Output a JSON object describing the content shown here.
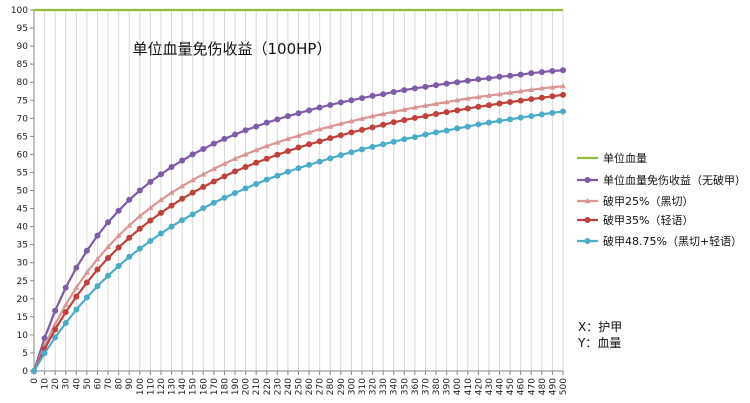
{
  "chart_data": {
    "type": "line",
    "title": "单位血量免伤收益（100HP）",
    "xlabel": "",
    "ylabel": "",
    "xlim": [
      0,
      500
    ],
    "ylim": [
      0,
      100
    ],
    "x_step": 10,
    "y_step": 5,
    "grid": "vertical",
    "legend_position": "right",
    "x": [
      0,
      10,
      20,
      30,
      40,
      50,
      60,
      70,
      80,
      90,
      100,
      110,
      120,
      130,
      140,
      150,
      160,
      170,
      180,
      190,
      200,
      210,
      220,
      230,
      240,
      250,
      260,
      270,
      280,
      290,
      300,
      310,
      320,
      330,
      340,
      350,
      360,
      370,
      380,
      390,
      400,
      410,
      420,
      430,
      440,
      450,
      460,
      470,
      480,
      490,
      500
    ],
    "series": [
      {
        "name": "单位血量",
        "color": "#8fbc3f",
        "marker": "none",
        "values": [
          100,
          100,
          100,
          100,
          100,
          100,
          100,
          100,
          100,
          100,
          100,
          100,
          100,
          100,
          100,
          100,
          100,
          100,
          100,
          100,
          100,
          100,
          100,
          100,
          100,
          100,
          100,
          100,
          100,
          100,
          100,
          100,
          100,
          100,
          100,
          100,
          100,
          100,
          100,
          100,
          100,
          100,
          100,
          100,
          100,
          100,
          100,
          100,
          100,
          100,
          100
        ]
      },
      {
        "name": "单位血量免伤收益（无破甲）",
        "color": "#7e5ba6",
        "marker": "circle",
        "values": [
          0,
          9.1,
          16.7,
          23.1,
          28.6,
          33.3,
          37.5,
          41.2,
          44.4,
          47.4,
          50.0,
          52.4,
          54.5,
          56.5,
          58.3,
          60.0,
          61.5,
          63.0,
          64.3,
          65.5,
          66.7,
          67.7,
          68.8,
          69.7,
          70.6,
          71.4,
          72.2,
          73.0,
          73.7,
          74.4,
          75.0,
          75.6,
          76.2,
          76.7,
          77.3,
          77.8,
          78.3,
          78.7,
          79.2,
          79.6,
          80.0,
          80.4,
          80.8,
          81.1,
          81.5,
          81.8,
          82.1,
          82.5,
          82.8,
          83.1,
          83.3
        ]
      },
      {
        "name": "破甲25%（黑切）",
        "color": "#d99694",
        "marker": "triangle",
        "values": [
          0,
          7.0,
          13.0,
          18.4,
          23.1,
          27.3,
          31.0,
          34.4,
          37.5,
          40.3,
          42.9,
          45.2,
          47.4,
          49.4,
          51.2,
          52.9,
          54.5,
          56.0,
          57.4,
          58.8,
          60.0,
          61.2,
          62.3,
          63.3,
          64.3,
          65.2,
          66.1,
          67.0,
          67.7,
          68.5,
          69.2,
          69.9,
          70.6,
          71.2,
          71.8,
          72.4,
          73.0,
          73.5,
          74.0,
          74.5,
          75.0,
          75.5,
          75.9,
          76.3,
          76.7,
          77.1,
          77.5,
          77.9,
          78.3,
          78.6,
          78.9
        ]
      },
      {
        "name": "破甲35%（轻语）",
        "color": "#c0413c",
        "marker": "circle",
        "values": [
          0,
          6.1,
          11.5,
          16.3,
          20.6,
          24.5,
          28.1,
          31.3,
          34.2,
          36.9,
          39.4,
          41.7,
          43.8,
          45.8,
          47.7,
          49.4,
          51.0,
          52.5,
          53.9,
          55.3,
          56.5,
          57.7,
          58.8,
          59.9,
          60.9,
          61.9,
          62.8,
          63.6,
          64.5,
          65.3,
          66.1,
          66.8,
          67.5,
          68.2,
          68.9,
          69.5,
          70.1,
          70.6,
          71.2,
          71.7,
          72.2,
          72.7,
          73.2,
          73.6,
          74.1,
          74.5,
          74.9,
          75.3,
          75.7,
          76.1,
          76.5
        ]
      },
      {
        "name": "破甲48.75%（黑切+轻语）",
        "color": "#4bacc6",
        "marker": "circle",
        "values": [
          0,
          4.9,
          9.3,
          13.3,
          17.0,
          20.4,
          23.5,
          26.4,
          29.1,
          31.6,
          33.9,
          36.0,
          38.1,
          40.0,
          41.8,
          43.4,
          45.1,
          46.6,
          48.0,
          49.3,
          50.6,
          51.8,
          53.0,
          54.1,
          55.2,
          56.2,
          57.1,
          58.0,
          58.9,
          59.8,
          60.6,
          61.4,
          62.1,
          62.8,
          63.5,
          64.2,
          64.8,
          65.5,
          66.1,
          66.6,
          67.2,
          67.7,
          68.3,
          68.8,
          69.3,
          69.7,
          70.2,
          70.6,
          71.1,
          71.5,
          71.9
        ]
      }
    ],
    "annotations": [
      "X：护甲",
      "Y：血量"
    ]
  }
}
